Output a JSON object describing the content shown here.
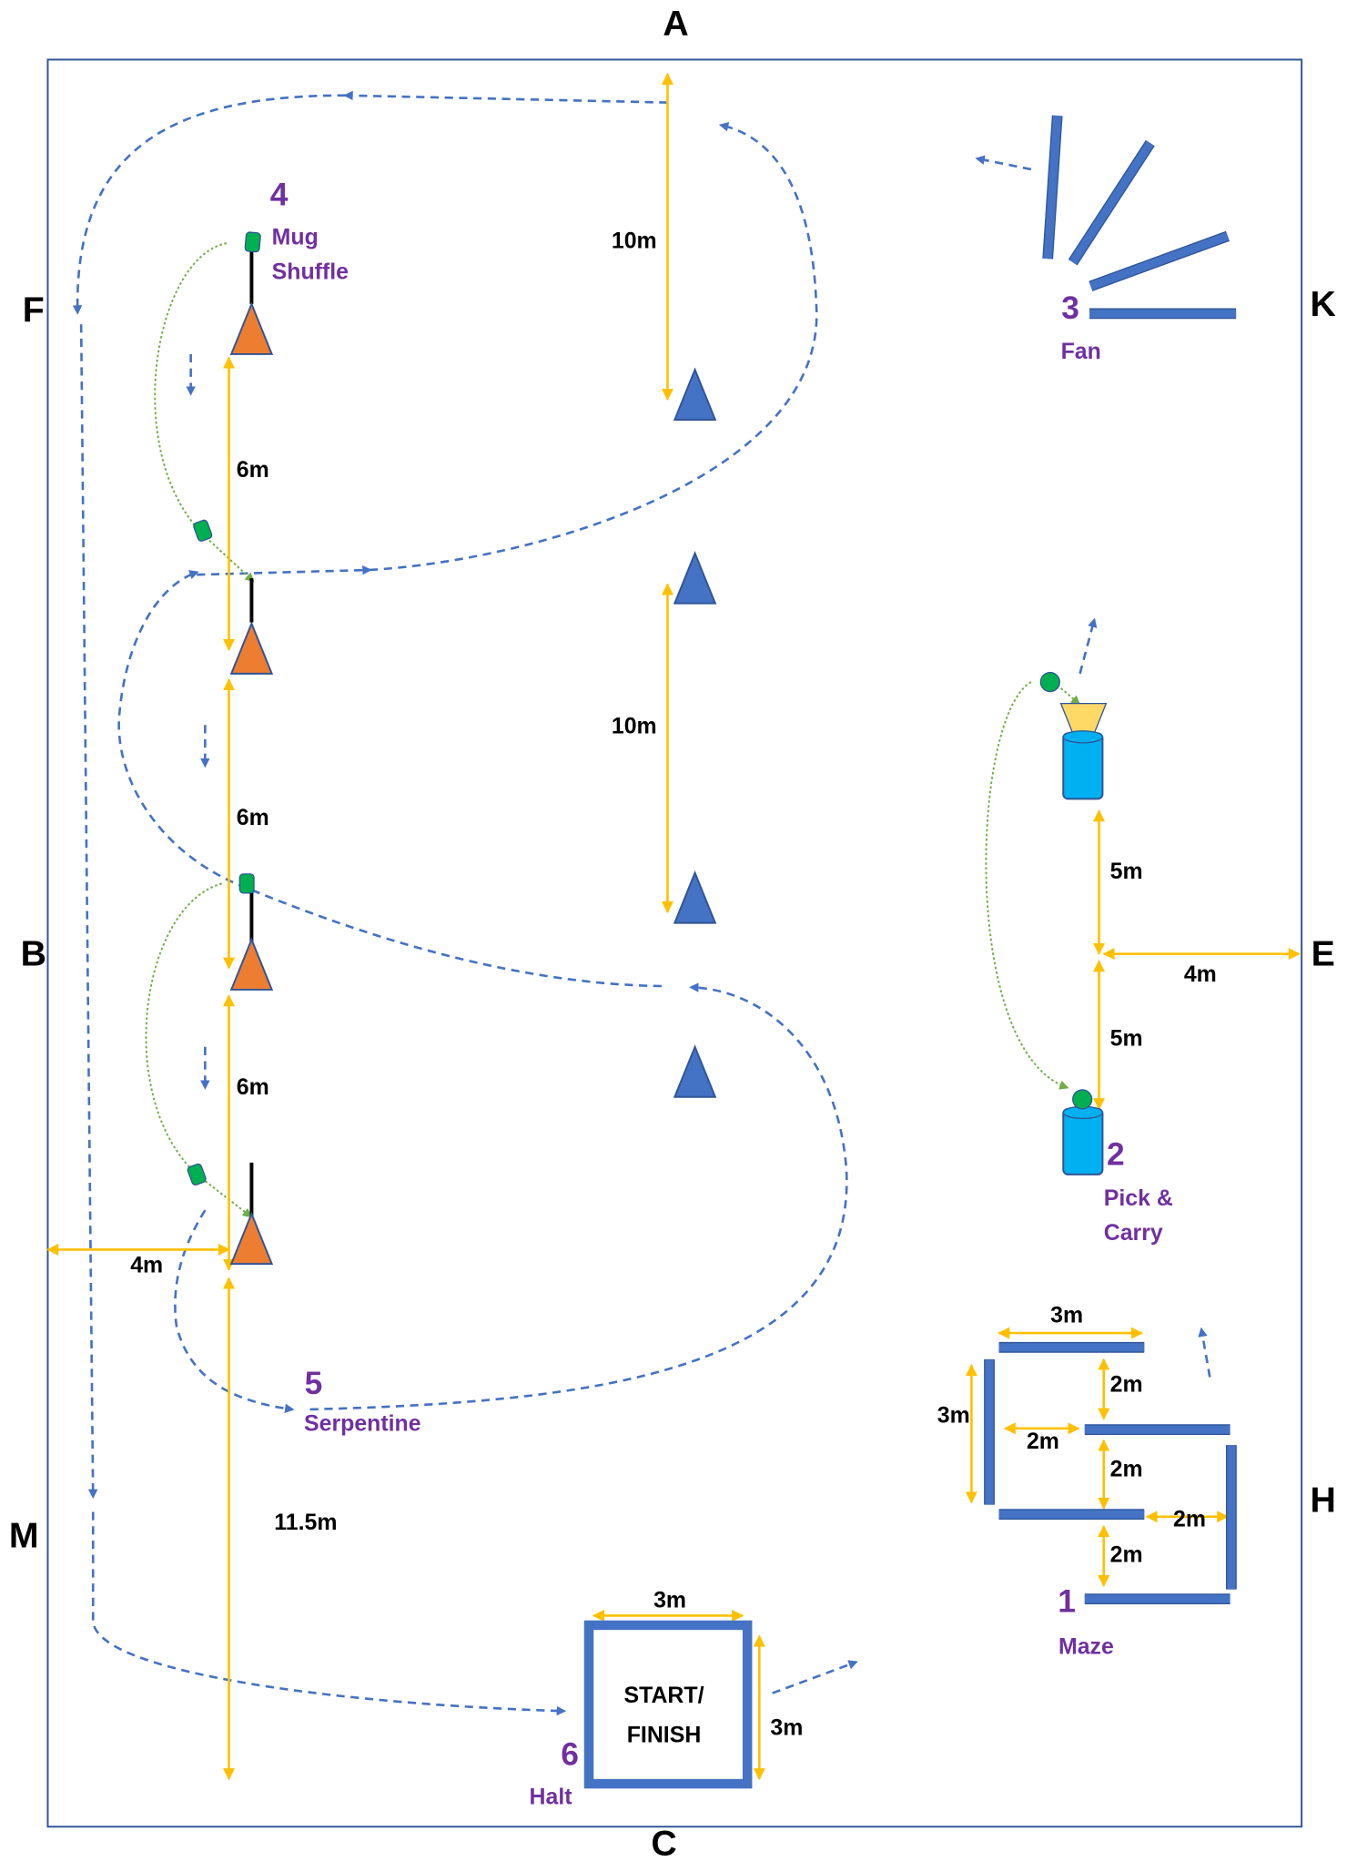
{
  "markers": [
    "A",
    "F",
    "K",
    "B",
    "E",
    "M",
    "H",
    "C"
  ],
  "stations": [
    {
      "number": "4",
      "name": [
        "Mug",
        "Shuffle"
      ]
    },
    {
      "number": "3",
      "name": [
        "Fan"
      ]
    },
    {
      "number": "2",
      "name": [
        "Pick &",
        "Carry"
      ]
    },
    {
      "number": "1",
      "name": [
        "Maze"
      ]
    },
    {
      "number": "5",
      "name": [
        "Serpentine"
      ]
    },
    {
      "number": "6",
      "name": [
        "Halt"
      ]
    }
  ],
  "distances": [
    "10m",
    "10m",
    "6m",
    "6m",
    "6m",
    "4m",
    "11.5m",
    "5m",
    "5m",
    "4m",
    "3m",
    "3m",
    "2m",
    "2m",
    "2m",
    "2m",
    "2m",
    "3m",
    "3m"
  ],
  "start_box": [
    "START/",
    "FINISH"
  ]
}
